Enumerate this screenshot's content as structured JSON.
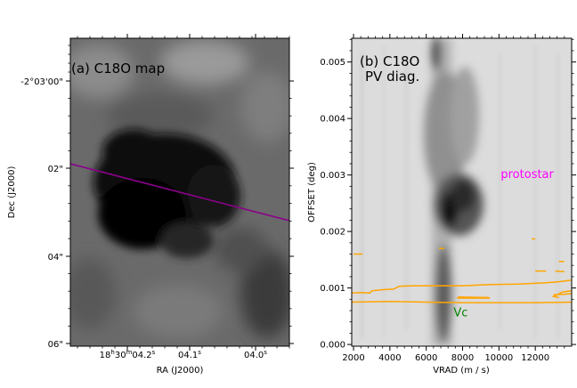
{
  "chart_data": [
    {
      "type": "heatmap",
      "panel_label": "(a) C18O map",
      "xlabel": "RA (J2000)",
      "ylabel": "Dec (J2000)",
      "x_ticks": [
        {
          "label_main": "18",
          "sup1": "h",
          "mid": "30",
          "sup2": "m",
          "tail": "04.2",
          "sup3": "s"
        },
        {
          "label_main": "04.1",
          "sup3": "s"
        },
        {
          "label_main": "04.0",
          "sup3": "s"
        }
      ],
      "y_ticks": [
        "-2°03'00\"",
        "02\"",
        "04\"",
        "06\""
      ],
      "colormap": "greys",
      "cut_line_color": "#8b008b"
    },
    {
      "type": "heatmap",
      "panel_label_line1": "(b) C18O",
      "panel_label_line2": "PV diag.",
      "xlabel": "VRAD (m / s)",
      "ylabel": "OFFSET (deg)",
      "xlim": [
        1900,
        14000
      ],
      "ylim": [
        -3e-05,
        0.00542
      ],
      "x_ticks": [
        2000,
        4000,
        6000,
        8000,
        10000,
        12000
      ],
      "y_ticks": [
        0.0,
        0.001,
        0.002,
        0.003,
        0.004,
        0.005
      ],
      "y_tick_labels": [
        "0.000",
        "0.001",
        "0.002",
        "0.003",
        "0.004",
        "0.005"
      ],
      "contour_color": "#ffa500",
      "annotations": [
        {
          "text": "protostar",
          "x": 10100,
          "y": 0.00295,
          "color": "#ff00ff"
        },
        {
          "text": "Vc",
          "x": 7500,
          "y": 0.0005,
          "color": "#008000"
        }
      ]
    }
  ]
}
